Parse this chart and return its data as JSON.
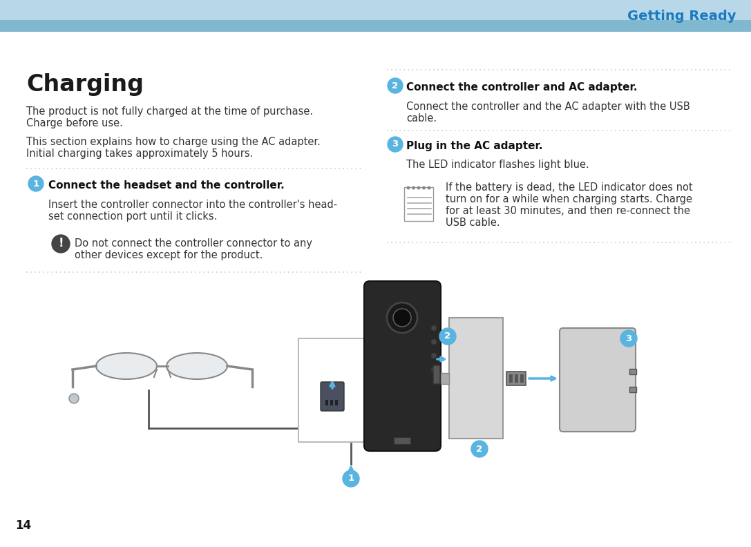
{
  "bg_color": "#ffffff",
  "header_bg": "#add8e6",
  "header_bg2": "#87BEDD",
  "header_text": "Getting Ready",
  "header_text_color": "#1a7abf",
  "page_num": "14",
  "title": "Charging",
  "body_text_color": "#333333",
  "body1_line1": "The product is not fully charged at the time of purchase.",
  "body1_line2": "Charge before use.",
  "body2_line1": "This section explains how to charge using the AC adapter.",
  "body2_line2": "Initial charging takes approximately 5 hours.",
  "step1_head": "Connect the headset and the controller.",
  "step1_body1": "Insert the controller connector into the controller's head-",
  "step1_body2": "set connection port until it clicks.",
  "step1_note1": "Do not connect the controller connector to any",
  "step1_note2": "other devices except for the product.",
  "step2_head": "Connect the controller and AC adapter.",
  "step2_body1": "Connect the controller and the AC adapter with the USB",
  "step2_body2": "cable.",
  "step3_head": "Plug in the AC adapter.",
  "step3_body": "The LED indicator flashes light blue.",
  "step3_note1": "If the battery is dead, the LED indicator does not",
  "step3_note2": "turn on for a while when charging starts. Charge",
  "step3_note3": "for at least 30 minutes, and then re-connect the",
  "step3_note4": "USB cable.",
  "step_circle_color": "#5ab4e0",
  "step_circle_text_color": "#ffffff",
  "note_circle_color": "#555555",
  "dotted_line_color": "#aaccdd"
}
